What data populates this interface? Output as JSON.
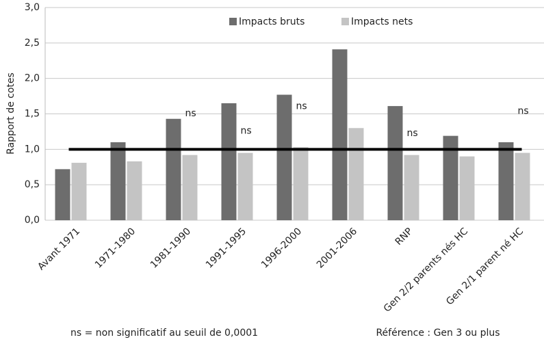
{
  "chart_data": {
    "type": "bar",
    "y_label": "Rapport de cotes",
    "categories": [
      "Avant 1971",
      "1971-1980",
      "1981-1990",
      "1991-1995",
      "1996-2000",
      "2001-2006",
      "RNP",
      "Gen 2/2 parents nés HC",
      "Gen 2/1 parent né HC"
    ],
    "series": [
      {
        "name": "Impacts bruts",
        "color": "#6d6d6d",
        "values": [
          0.72,
          1.1,
          1.43,
          1.65,
          1.77,
          2.41,
          1.61,
          1.19,
          1.1
        ]
      },
      {
        "name": "Impacts nets",
        "color": "#c4c4c4",
        "values": [
          0.81,
          0.83,
          0.92,
          0.95,
          1.03,
          1.3,
          0.92,
          0.9,
          0.95
        ]
      }
    ],
    "ylim": [
      0,
      3
    ],
    "yticks": [
      {
        "value": 0,
        "label": "0,0"
      },
      {
        "value": 0.5,
        "label": "0,5"
      },
      {
        "value": 1,
        "label": "1,0"
      },
      {
        "value": 1.5,
        "label": "1,5"
      },
      {
        "value": 2,
        "label": "2,0"
      },
      {
        "value": 2.5,
        "label": "2,5"
      },
      {
        "value": 3,
        "label": "3,0"
      }
    ],
    "grid": true,
    "reference_line": 1,
    "annotations": [
      {
        "text": "ns",
        "x": "1981-1990",
        "y": 1.43
      },
      {
        "text": "ns",
        "x": "1991-1995",
        "y": 1.18
      },
      {
        "text": "ns",
        "x": "1996-2000",
        "y": 1.53
      },
      {
        "text": "ns",
        "x": "RNP",
        "y": 1.15
      },
      {
        "text": "ns",
        "x": "Gen 2/1 parent né HC",
        "y": 1.46
      }
    ],
    "footnotes": [
      "ns = non significatif au seuil de 0,0001",
      "Référence : Gen 3 ou plus"
    ]
  }
}
